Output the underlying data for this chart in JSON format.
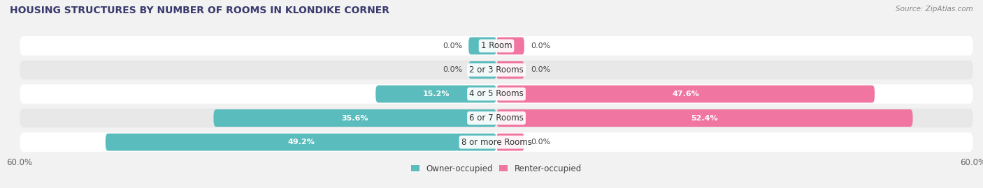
{
  "title": "HOUSING STRUCTURES BY NUMBER OF ROOMS IN KLONDIKE CORNER",
  "source": "Source: ZipAtlas.com",
  "categories": [
    "1 Room",
    "2 or 3 Rooms",
    "4 or 5 Rooms",
    "6 or 7 Rooms",
    "8 or more Rooms"
  ],
  "owner_values": [
    0.0,
    0.0,
    15.2,
    35.6,
    49.2
  ],
  "renter_values": [
    0.0,
    0.0,
    47.6,
    52.4,
    0.0
  ],
  "owner_color": "#5bbcbd",
  "renter_color": "#f075a0",
  "owner_label": "Owner-occupied",
  "renter_label": "Renter-occupied",
  "xlim": 60.0,
  "bg_color": "#f2f2f2",
  "row_colors": [
    "#ffffff",
    "#e8e8e8"
  ],
  "title_fontsize": 10,
  "source_fontsize": 7.5,
  "label_fontsize": 8.5,
  "tick_fontsize": 8.5,
  "value_fontsize": 8.0
}
